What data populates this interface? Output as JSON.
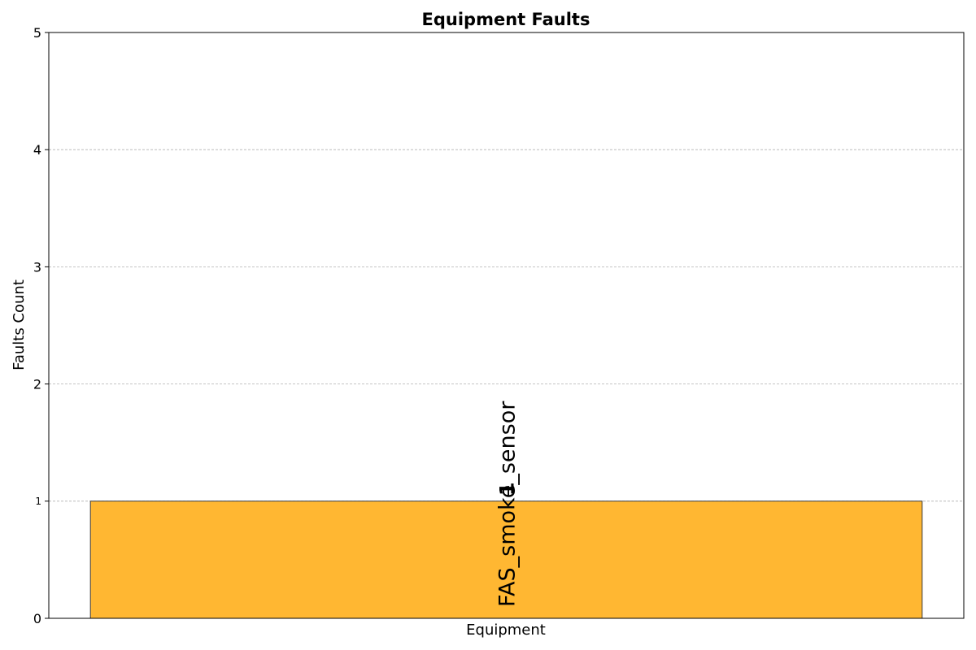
{
  "chart_data": {
    "type": "bar",
    "title": "Equipment Faults",
    "xlabel": "Equipment",
    "ylabel": "Faults Count",
    "categories": [
      "FAS_smoke_sensor"
    ],
    "values": [
      1
    ],
    "value_labels": [
      "1"
    ],
    "ylim": [
      0,
      5
    ],
    "yticks": [
      "0",
      "1",
      "2",
      "3",
      "4",
      "5"
    ],
    "grid": "horizontal",
    "bar_color": "#ffb732",
    "bar_edge_color": "#3a3a3a"
  }
}
